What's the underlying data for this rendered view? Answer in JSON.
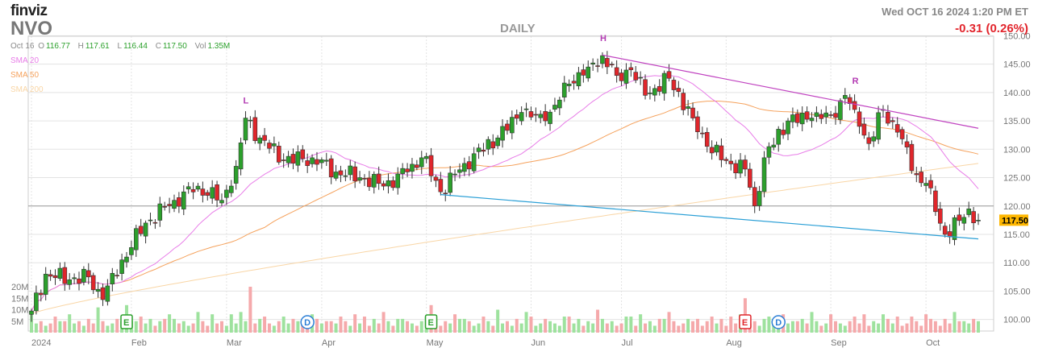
{
  "header": {
    "logo": "finviz",
    "ticker": "NVO",
    "datetime": "Wed OCT 16 2024 1:20 PM ET",
    "change": "-0.31 (0.26%)",
    "period": "DAILY"
  },
  "quote": {
    "date": "Oct 16",
    "open_label": "O",
    "open": "116.77",
    "high_label": "H",
    "high": "117.61",
    "low_label": "L",
    "low": "116.44",
    "close_label": "C",
    "close": "117.50",
    "vol_label": "Vol",
    "volume": "1.35M"
  },
  "legend": [
    {
      "label": "SMA 20",
      "color": "#e87de8"
    },
    {
      "label": "SMA 50",
      "color": "#f5a25d"
    },
    {
      "label": "SMA 200",
      "color": "#f9d6a6"
    }
  ],
  "colors": {
    "up": "#2ca02c",
    "down": "#e0262b",
    "vol_up": "#9ee29e",
    "vol_down": "#f5a9ab",
    "grid": "#e3e3e3",
    "channel_top": "#c042c0",
    "channel_bottom": "#2a9fd6",
    "last_price_bg": "#ffb700"
  },
  "chart_data": {
    "type": "candlestick",
    "title": "NVO",
    "period": "DAILY",
    "y_ticks": [
      "150.00",
      "145.00",
      "140.00",
      "135.00",
      "130.00",
      "125.00",
      "120.00",
      "115.00",
      "110.00",
      "105.00",
      "100.00"
    ],
    "y_tick_values": [
      150,
      145,
      140,
      135,
      130,
      125,
      120,
      115,
      110,
      105,
      100
    ],
    "ylim": [
      98.5,
      152
    ],
    "x_tick_labels": [
      "2024",
      "Feb",
      "Mar",
      "Apr",
      "May",
      "Jun",
      "Jul",
      "Aug",
      "Sep",
      "Oct"
    ],
    "x_tick_dates": [
      "2024-01-02",
      "2024-02-01",
      "2024-03-01",
      "2024-04-01",
      "2024-05-01",
      "2024-06-03",
      "2024-07-01",
      "2024-08-01",
      "2024-09-03",
      "2024-10-01"
    ],
    "volume_ticks": [
      "20M",
      "15M",
      "10M",
      "5M"
    ],
    "volume_tick_values": [
      20,
      15,
      10,
      5
    ],
    "last_price": "117.50",
    "reference_price": 120.0,
    "annotations": [
      {
        "text": "L",
        "date": "2024-03-07",
        "price": 137.5
      },
      {
        "text": "H",
        "date": "2024-06-25",
        "price": 148.5
      },
      {
        "text": "R",
        "date": "2024-09-10",
        "price": 141.0
      }
    ],
    "events": [
      {
        "text": "E",
        "date": "2024-01-31",
        "kind": "earnings"
      },
      {
        "text": "D",
        "date": "2024-03-26",
        "kind": "dividend"
      },
      {
        "text": "E",
        "date": "2024-05-02",
        "kind": "earnings"
      },
      {
        "text": "E",
        "date": "2024-08-07",
        "kind": "earnings"
      },
      {
        "text": "D",
        "date": "2024-08-16",
        "kind": "dividend"
      }
    ],
    "trendlines": [
      {
        "name": "resistance",
        "start": {
          "date": "2024-06-25",
          "price": 146.6
        },
        "end": {
          "date": "2024-10-16",
          "price": 133.7
        }
      },
      {
        "name": "support",
        "start": {
          "date": "2024-05-06",
          "price": 122.0
        },
        "end": {
          "date": "2024-10-16",
          "price": 114.2
        }
      }
    ],
    "anchors": [
      [
        "2024-01-02",
        101.5
      ],
      [
        "2024-01-05",
        108.0
      ],
      [
        "2024-01-12",
        107.0
      ],
      [
        "2024-01-19",
        107.5
      ],
      [
        "2024-01-24",
        103.5
      ],
      [
        "2024-01-30",
        110.5
      ],
      [
        "2024-02-06",
        117.0
      ],
      [
        "2024-02-14",
        121.0
      ],
      [
        "2024-02-22",
        123.5
      ],
      [
        "2024-02-29",
        121.0
      ],
      [
        "2024-03-05",
        127.0
      ],
      [
        "2024-03-07",
        135.5
      ],
      [
        "2024-03-12",
        132.0
      ],
      [
        "2024-03-19",
        128.0
      ],
      [
        "2024-03-27",
        128.5
      ],
      [
        "2024-04-04",
        126.0
      ],
      [
        "2024-04-11",
        125.0
      ],
      [
        "2024-04-18",
        123.5
      ],
      [
        "2024-04-25",
        126.0
      ],
      [
        "2024-04-30",
        128.5
      ],
      [
        "2024-05-03",
        124.5
      ],
      [
        "2024-05-06",
        122.5
      ],
      [
        "2024-05-13",
        127.5
      ],
      [
        "2024-05-22",
        132.0
      ],
      [
        "2024-05-30",
        136.5
      ],
      [
        "2024-06-06",
        135.0
      ],
      [
        "2024-06-13",
        141.5
      ],
      [
        "2024-06-20",
        144.5
      ],
      [
        "2024-06-25",
        146.5
      ],
      [
        "2024-06-28",
        143.0
      ],
      [
        "2024-07-03",
        144.0
      ],
      [
        "2024-07-09",
        139.5
      ],
      [
        "2024-07-16",
        142.5
      ],
      [
        "2024-07-23",
        135.5
      ],
      [
        "2024-07-26",
        130.5
      ],
      [
        "2024-08-01",
        128.0
      ],
      [
        "2024-08-07",
        126.5
      ],
      [
        "2024-08-09",
        120.0
      ],
      [
        "2024-08-13",
        128.5
      ],
      [
        "2024-08-20",
        135.0
      ],
      [
        "2024-08-27",
        135.5
      ],
      [
        "2024-09-03",
        136.0
      ],
      [
        "2024-09-06",
        139.5
      ],
      [
        "2024-09-10",
        137.0
      ],
      [
        "2024-09-13",
        131.0
      ],
      [
        "2024-09-18",
        137.0
      ],
      [
        "2024-09-23",
        133.0
      ],
      [
        "2024-09-27",
        125.5
      ],
      [
        "2024-10-01",
        124.0
      ],
      [
        "2024-10-03",
        119.0
      ],
      [
        "2024-10-07",
        115.0
      ],
      [
        "2024-10-11",
        118.0
      ],
      [
        "2024-10-14",
        119.5
      ],
      [
        "2024-10-16",
        117.5
      ]
    ],
    "volume_pattern_millions": [
      6,
      4,
      5,
      3,
      4,
      7,
      5,
      3,
      8,
      4,
      5,
      3,
      6,
      4,
      9,
      5,
      3,
      4,
      6,
      5,
      4,
      3,
      5,
      7,
      4,
      6,
      3,
      5,
      4,
      8
    ]
  }
}
